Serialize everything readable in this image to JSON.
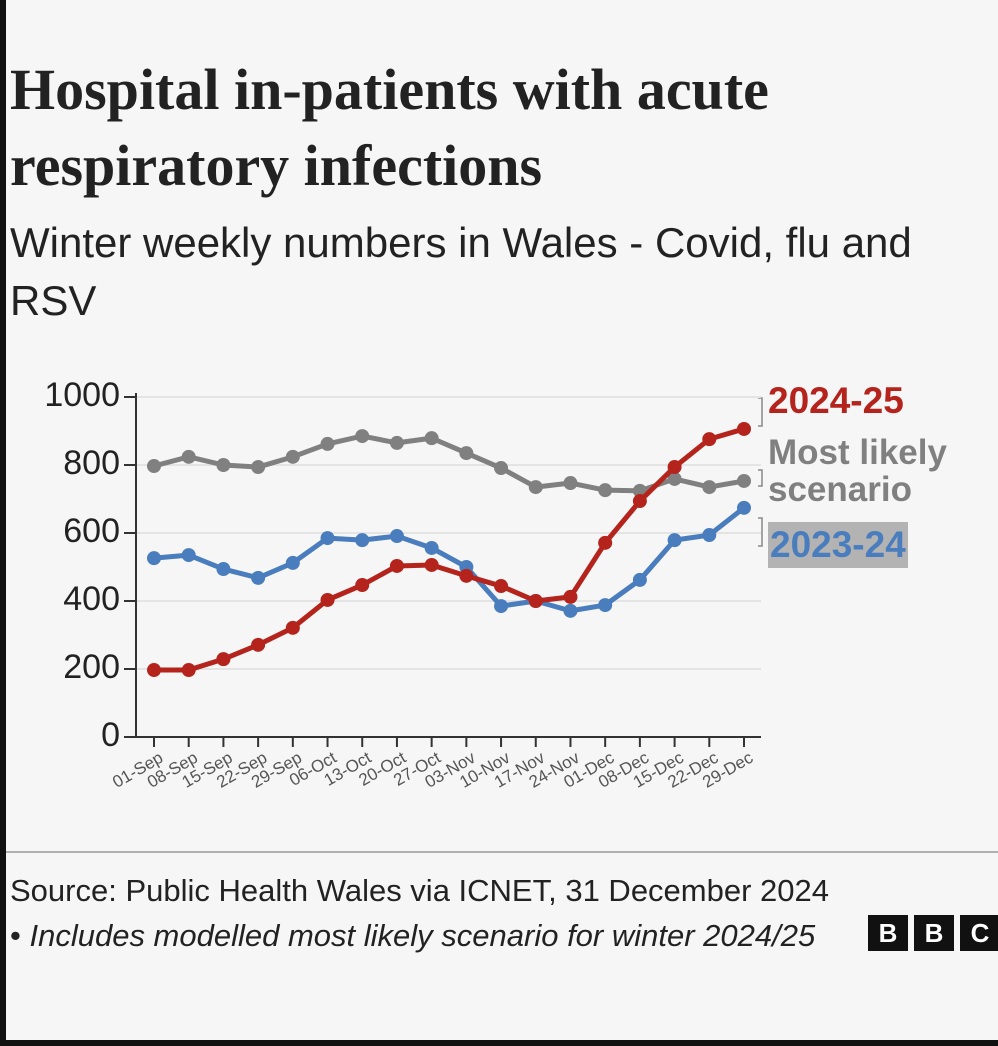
{
  "chart_data": {
    "type": "line",
    "title": "Hospital in-patients with acute respiratory infections",
    "subtitle": "Winter weekly numbers in Wales - Covid, flu and RSV",
    "categories": [
      "01-Sep",
      "08-Sep",
      "15-Sep",
      "22-Sep",
      "29-Sep",
      "06-Oct",
      "13-Oct",
      "20-Oct",
      "27-Oct",
      "03-Nov",
      "10-Nov",
      "17-Nov",
      "24-Nov",
      "01-Dec",
      "08-Dec",
      "15-Dec",
      "22-Dec",
      "29-Dec"
    ],
    "series": [
      {
        "name": "Most likely scenario",
        "color": "#808080",
        "values": [
          797,
          824,
          800,
          794,
          824,
          862,
          885,
          865,
          879,
          835,
          791,
          735,
          747,
          726,
          724,
          759,
          735,
          753
        ]
      },
      {
        "name": "2023-24",
        "color": "#4a7dbd",
        "values": [
          526,
          535,
          494,
          468,
          512,
          585,
          579,
          591,
          556,
          500,
          385,
          400,
          371,
          388,
          462,
          579,
          594,
          674
        ]
      },
      {
        "name": "2024-25",
        "color": "#b5241c",
        "values": [
          197,
          197,
          229,
          271,
          321,
          403,
          447,
          503,
          506,
          474,
          444,
          400,
          412,
          571,
          694,
          794,
          876,
          906
        ]
      }
    ],
    "ylim": [
      0,
      1000
    ],
    "yticks": [
      0,
      200,
      400,
      600,
      800,
      1000
    ],
    "grid": true,
    "source": "Source: Public Health Wales via ICNET, 31 December 2024 •",
    "note": "Includes modelled most likely scenario for winter 2024/25",
    "logo": [
      "B",
      "B",
      "C"
    ]
  }
}
